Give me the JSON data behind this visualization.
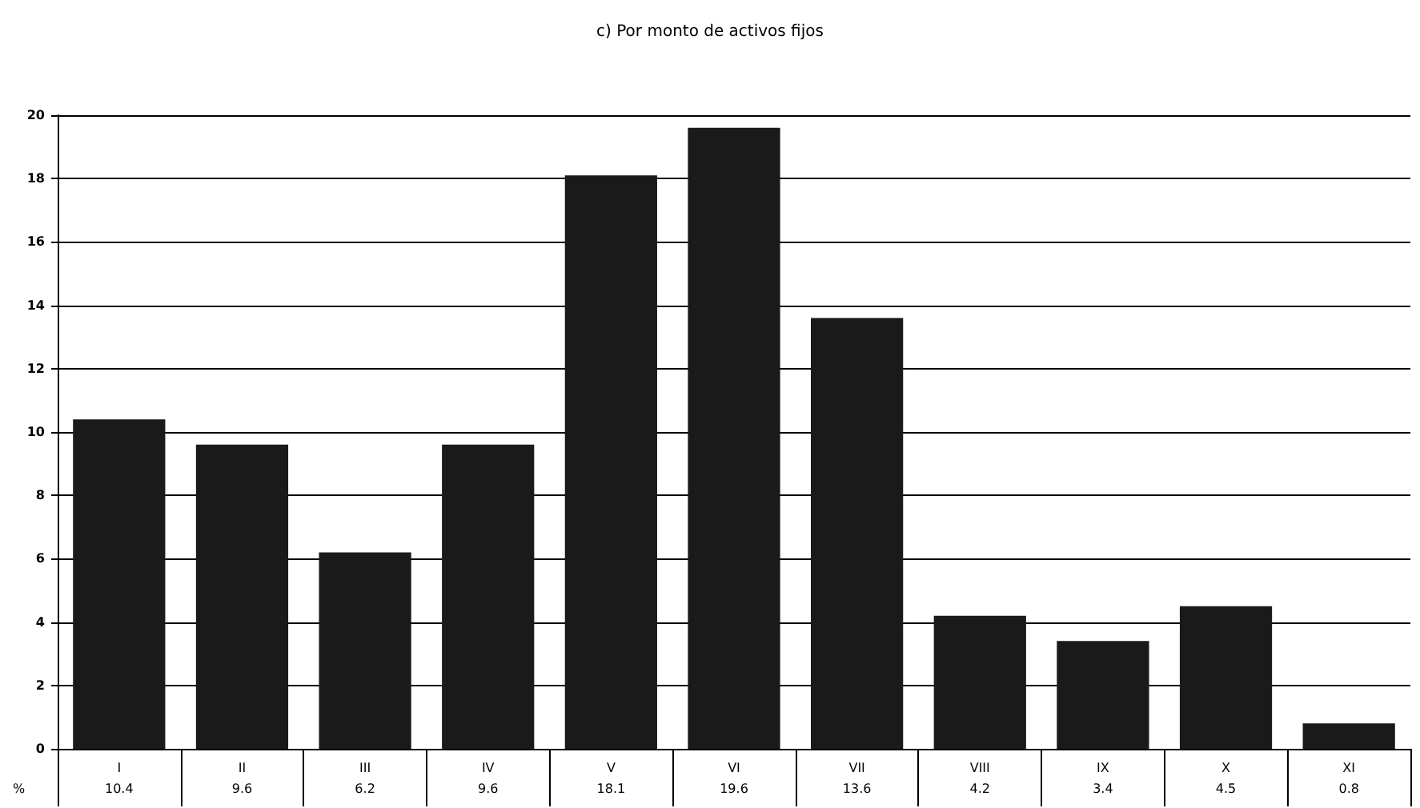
{
  "chart_data": {
    "type": "bar",
    "title": "c) Por monto de activos fijos",
    "categories": [
      "I",
      "II",
      "III",
      "IV",
      "V",
      "VI",
      "VII",
      "VIII",
      "IX",
      "X",
      "XI"
    ],
    "values": [
      10.4,
      9.6,
      6.2,
      9.6,
      18.1,
      19.6,
      13.6,
      4.2,
      3.4,
      4.5,
      0.8
    ],
    "color": "#1a1a1a",
    "ylim": [
      0,
      20
    ],
    "yticks": [
      0,
      2,
      4,
      6,
      8,
      10,
      12,
      14,
      16,
      18,
      20
    ],
    "grid": "y",
    "data_labels": true,
    "annotations": [
      "%"
    ]
  }
}
